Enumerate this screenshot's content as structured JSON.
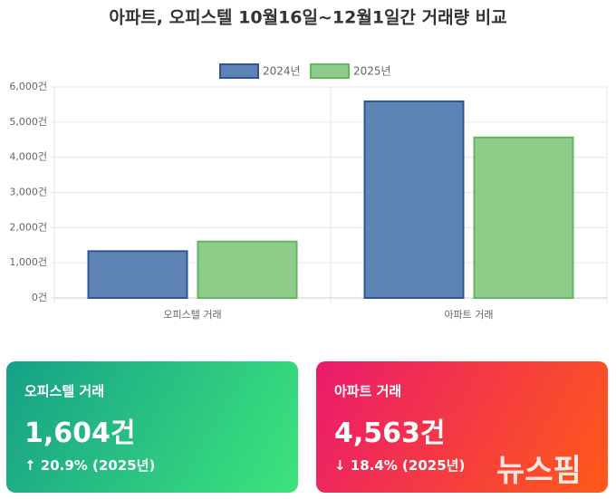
{
  "chart_data": {
    "type": "bar",
    "title": "아파트, 오피스텔 10월16일~12월1일간 거래량 비교",
    "categories": [
      "오피스텔 거래",
      "아파트 거래"
    ],
    "series": [
      {
        "name": "2024년",
        "color": "#5e84b6",
        "border_color": "#2f5597",
        "values": [
          1330,
          5590
        ]
      },
      {
        "name": "2025년",
        "color": "#8dcc89",
        "border_color": "#64b560",
        "values": [
          1604,
          4563
        ]
      }
    ],
    "ylim": [
      0,
      6000
    ],
    "yticks": [
      {
        "value": 0,
        "label": "0건"
      },
      {
        "value": 1000,
        "label": "1,000건"
      },
      {
        "value": 2000,
        "label": "2,000건"
      },
      {
        "value": 3000,
        "label": "3,000건"
      },
      {
        "value": 4000,
        "label": "4,000건"
      },
      {
        "value": 5000,
        "label": "5,000건"
      },
      {
        "value": 6000,
        "label": "6,000건"
      }
    ],
    "grid": true,
    "legend": "top"
  },
  "cards": [
    {
      "title": "오피스텔 거래",
      "value": "1,604건",
      "change": "↑ 20.9% (2025년)"
    },
    {
      "title": "아파트 거래",
      "value": "4,563건",
      "change": "↓ 18.4% (2025년)"
    }
  ],
  "watermark": "뉴스핌"
}
